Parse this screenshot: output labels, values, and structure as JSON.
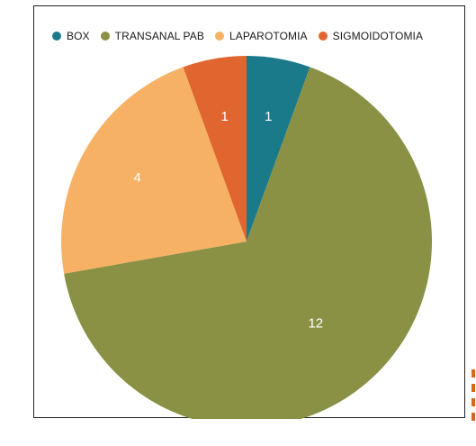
{
  "chart_data": {
    "type": "pie",
    "title": "",
    "labels": [
      "BOX",
      "TRANSANAL PAB",
      "LAPAROTOMIA",
      "SIGMOIDOTOMIA"
    ],
    "values": [
      1,
      12,
      4,
      1
    ],
    "colors": [
      "#1a7a8a",
      "#8a9144",
      "#f7b165",
      "#e0652f"
    ],
    "data_labels": [
      "1",
      "12",
      "4",
      "1"
    ],
    "legend_position": "top",
    "start_angle_deg": 0,
    "direction": "clockwise"
  },
  "legend": {
    "items": [
      {
        "label": "BOX",
        "color": "#1a7a8a"
      },
      {
        "label": "TRANSANAL PAB",
        "color": "#8a9144"
      },
      {
        "label": "LAPAROTOMIA",
        "color": "#f7b165"
      },
      {
        "label": "SIGMOIDOTOMIA",
        "color": "#e0652f"
      }
    ]
  }
}
